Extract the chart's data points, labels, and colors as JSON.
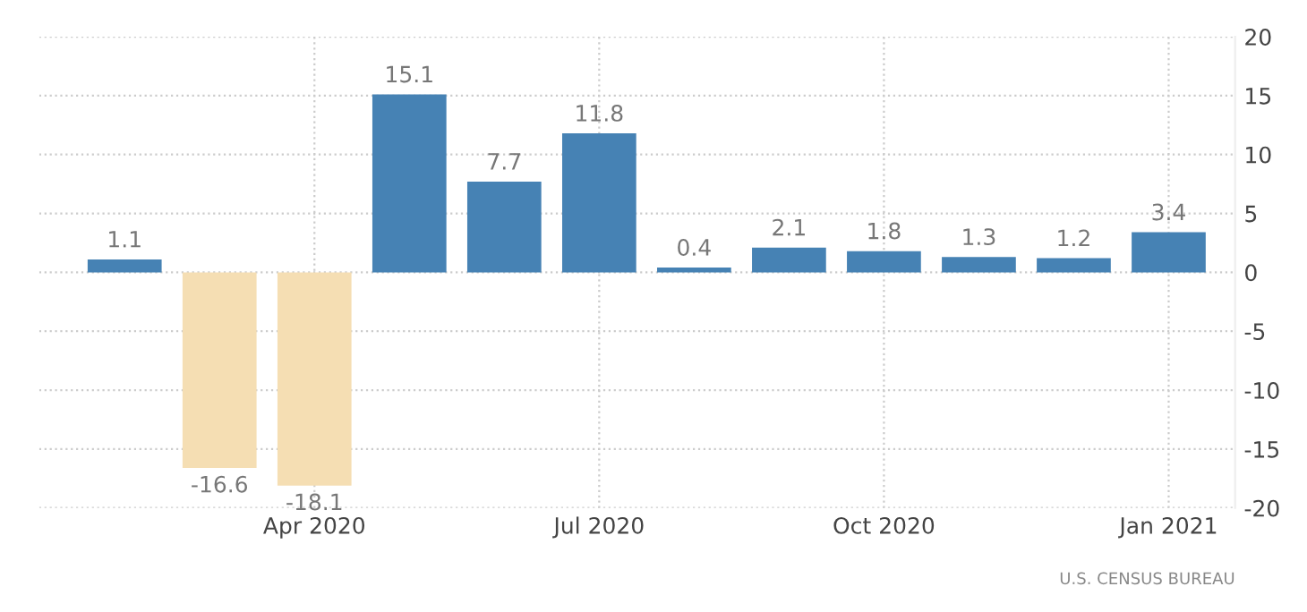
{
  "chart_data": {
    "type": "bar",
    "categories": [
      null,
      null,
      "Apr 2020",
      null,
      null,
      "Jul 2020",
      null,
      null,
      "Oct 2020",
      null,
      null,
      "Jan 2021"
    ],
    "values": [
      1.1,
      -16.6,
      -18.1,
      15.1,
      7.7,
      11.8,
      0.4,
      2.1,
      1.8,
      1.3,
      1.2,
      3.4
    ],
    "colors": [
      "#4682b4",
      "#f5deb3",
      "#f5deb3",
      "#4682b4",
      "#4682b4",
      "#4682b4",
      "#4682b4",
      "#4682b4",
      "#4682b4",
      "#4682b4",
      "#4682b4",
      "#4682b4"
    ],
    "ylim": [
      -20,
      20
    ],
    "yticks": [
      -20,
      -15,
      -10,
      -5,
      0,
      5,
      10,
      15,
      20
    ],
    "grid": true,
    "data_labels": true,
    "annotations": [
      "U.S. CENSUS BUREAU"
    ]
  }
}
